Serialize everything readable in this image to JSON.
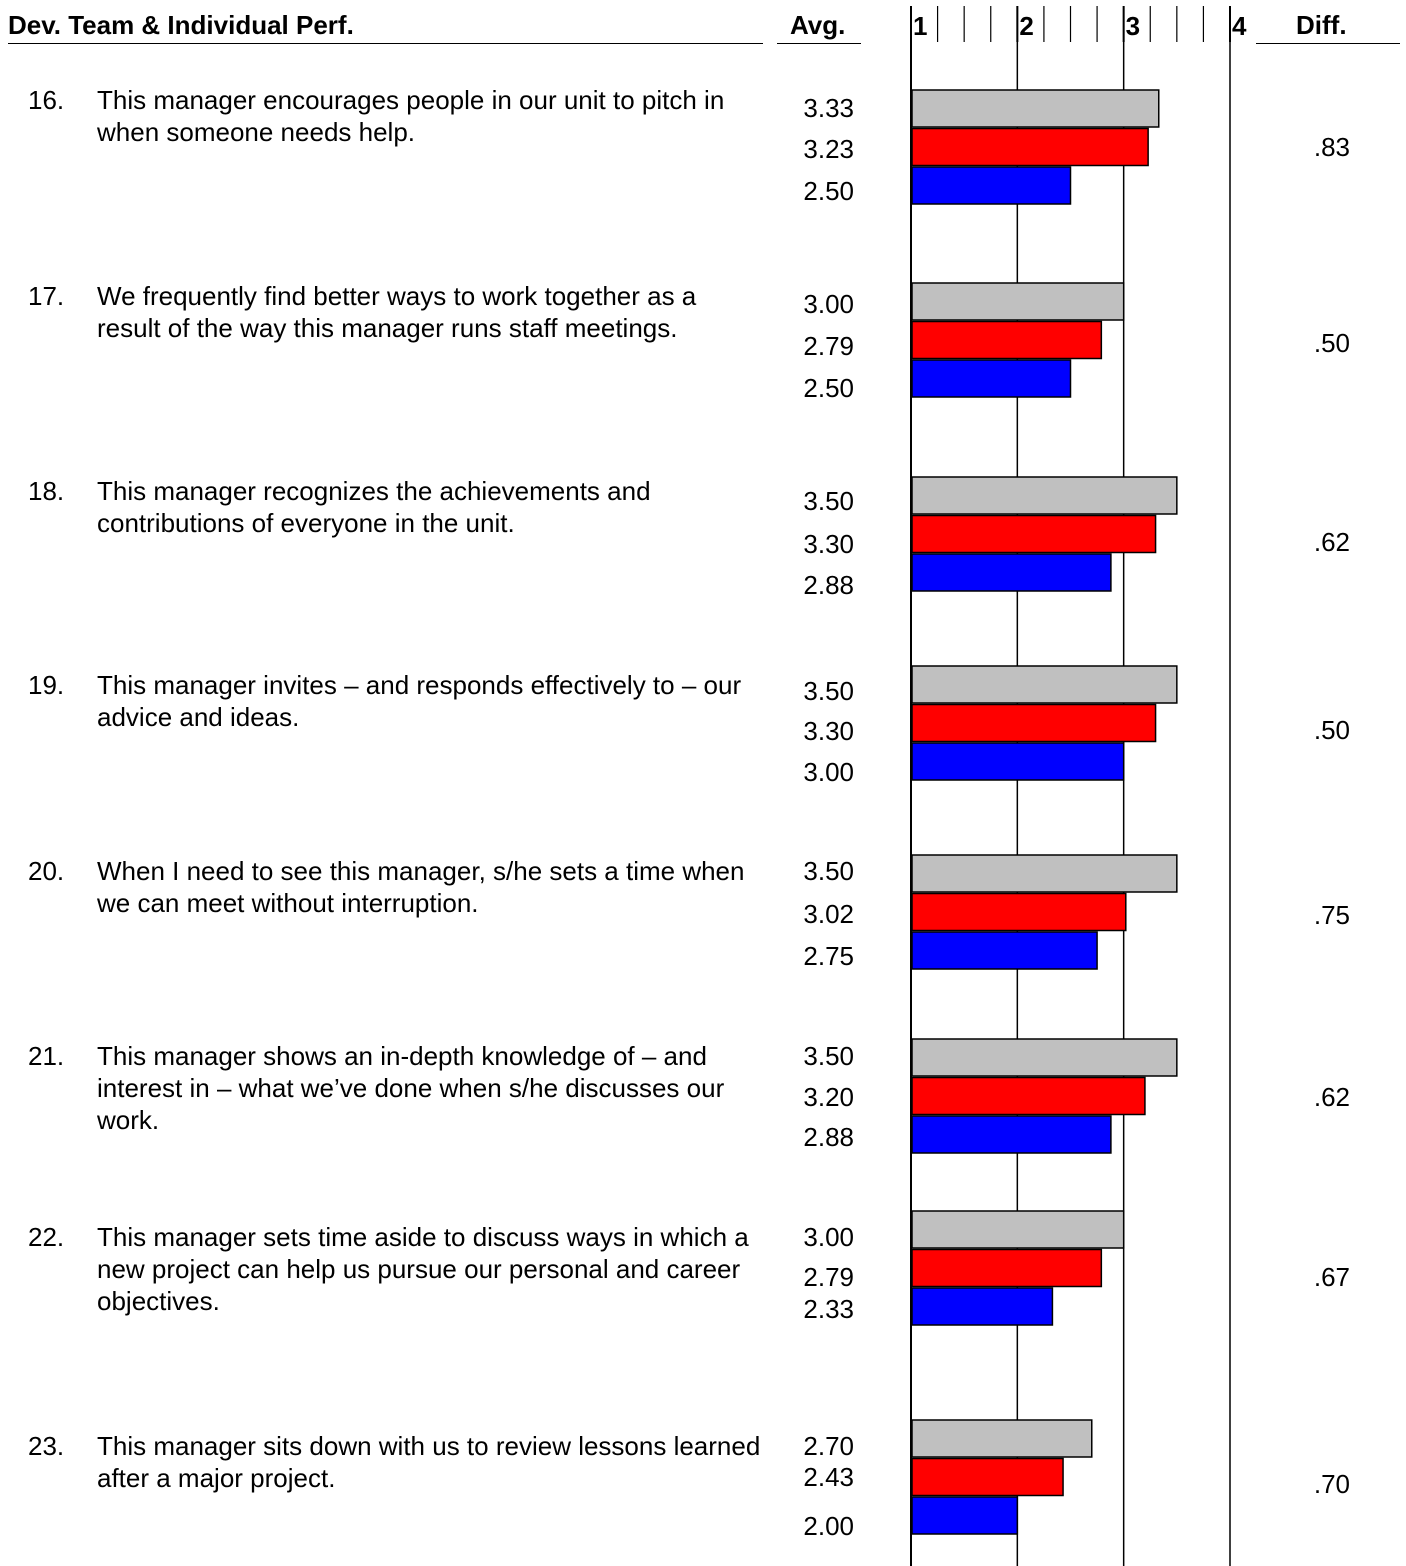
{
  "header": {
    "section_title": "Dev. Team & Individual Perf.",
    "avg_label": "Avg.",
    "diff_label": "Diff."
  },
  "colors": {
    "series_1": "#c0c0c0",
    "series_2": "#ff0000",
    "series_3": "#0000ff"
  },
  "items": [
    {
      "number": "16.",
      "text": "This manager encourages people in our unit to pitch in when someone needs help.",
      "averages": [
        "3.33",
        "3.23",
        "2.50"
      ],
      "diff": ".83"
    },
    {
      "number": "17.",
      "text": "We frequently find better ways to work together as a result of the way this manager runs staff meetings.",
      "averages": [
        "3.00",
        "2.79",
        "2.50"
      ],
      "diff": ".50"
    },
    {
      "number": "18.",
      "text": "This manager recognizes the achievements and contributions of everyone in the unit.",
      "averages": [
        "3.50",
        "3.30",
        "2.88"
      ],
      "diff": ".62"
    },
    {
      "number": "19.",
      "text": "This manager invites – and responds effectively to – our advice and ideas.",
      "averages": [
        "3.50",
        "3.30",
        "3.00"
      ],
      "diff": ".50"
    },
    {
      "number": "20.",
      "text": "When I need to see this manager, s/he sets a time when we can meet without interruption.",
      "averages": [
        "3.50",
        "3.02",
        "2.75"
      ],
      "diff": ".75"
    },
    {
      "number": "21.",
      "text": "This manager shows an in-depth knowledge of – and interest in – what we’ve done when s/he discusses our work.",
      "averages": [
        "3.50",
        "3.20",
        "2.88"
      ],
      "diff": ".62"
    },
    {
      "number": "22.",
      "text": "This manager sets time aside to discuss ways in which a new project can help us pursue our personal and career objectives.",
      "averages": [
        "3.00",
        "2.79",
        "2.33"
      ],
      "diff": ".67"
    },
    {
      "number": "23.",
      "text": "This manager sits down with us to review lessons learned after a major project.",
      "averages": [
        "2.70",
        "2.43",
        "2.00"
      ],
      "diff": ".70"
    }
  ],
  "chart_data": {
    "type": "bar",
    "orientation": "horizontal",
    "categories": [
      "16.",
      "17.",
      "18.",
      "19.",
      "20.",
      "21.",
      "22.",
      "23."
    ],
    "series": [
      {
        "values": [
          3.33,
          3.0,
          3.5,
          3.5,
          3.5,
          3.5,
          3.0,
          2.7
        ]
      },
      {
        "values": [
          3.23,
          2.79,
          3.3,
          3.3,
          3.02,
          3.2,
          2.79,
          2.43
        ]
      },
      {
        "values": [
          2.5,
          2.5,
          2.88,
          3.0,
          2.75,
          2.88,
          2.33,
          2.0
        ]
      }
    ],
    "xlim": [
      1,
      4
    ],
    "x_tick_labels": [
      "1",
      "2",
      "3",
      "4"
    ],
    "grid": true
  }
}
